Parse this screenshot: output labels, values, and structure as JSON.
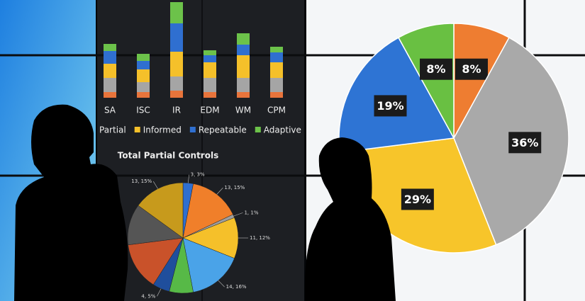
{
  "chart_data": [
    {
      "type": "stacked-bar",
      "categories": [
        "SA",
        "ISC",
        "IR",
        "EDM",
        "WM",
        "CPM"
      ],
      "series": [
        {
          "color": "#e8743b",
          "values": [
            8,
            8,
            10,
            8,
            8,
            8
          ]
        },
        {
          "name": "Partial",
          "color": "#a5a5a5",
          "values": [
            20,
            14,
            20,
            20,
            20,
            20
          ]
        },
        {
          "name": "Informed",
          "color": "#f5c02a",
          "values": [
            20,
            18,
            35,
            22,
            32,
            22
          ]
        },
        {
          "name": "Repeatable",
          "color": "#2f6fd0",
          "values": [
            18,
            12,
            40,
            10,
            15,
            14
          ]
        },
        {
          "name": "Adaptive",
          "color": "#6cc24a",
          "values": [
            10,
            10,
            30,
            7,
            16,
            8
          ]
        }
      ]
    },
    {
      "type": "pie",
      "title": "Total Partial Controls",
      "values": [
        3,
        15,
        1,
        12,
        16,
        7,
        5,
        14,
        12,
        15
      ],
      "value_labels": [
        "3, 3%",
        "13, 15%",
        "1, 1%",
        "11, 12%",
        "14, 16%",
        null,
        "4, 5%",
        null,
        null,
        "13, 15%"
      ],
      "colors": [
        "#2f6fd0",
        "#f07f2a",
        "#9e9e9e",
        "#f5c02a",
        "#4aa3e8",
        "#57b947",
        "#1f4e9c",
        "#c9522a",
        "#555555",
        "#c79a1c"
      ]
    },
    {
      "type": "pie",
      "values": [
        8,
        36,
        29,
        19,
        8
      ],
      "value_labels": [
        "8%",
        "36%",
        "29%",
        "19%",
        "8%"
      ],
      "colors": [
        "#ee7d31",
        "#a9a9a9",
        "#f7c52a",
        "#2e74d4",
        "#69c042"
      ]
    }
  ]
}
